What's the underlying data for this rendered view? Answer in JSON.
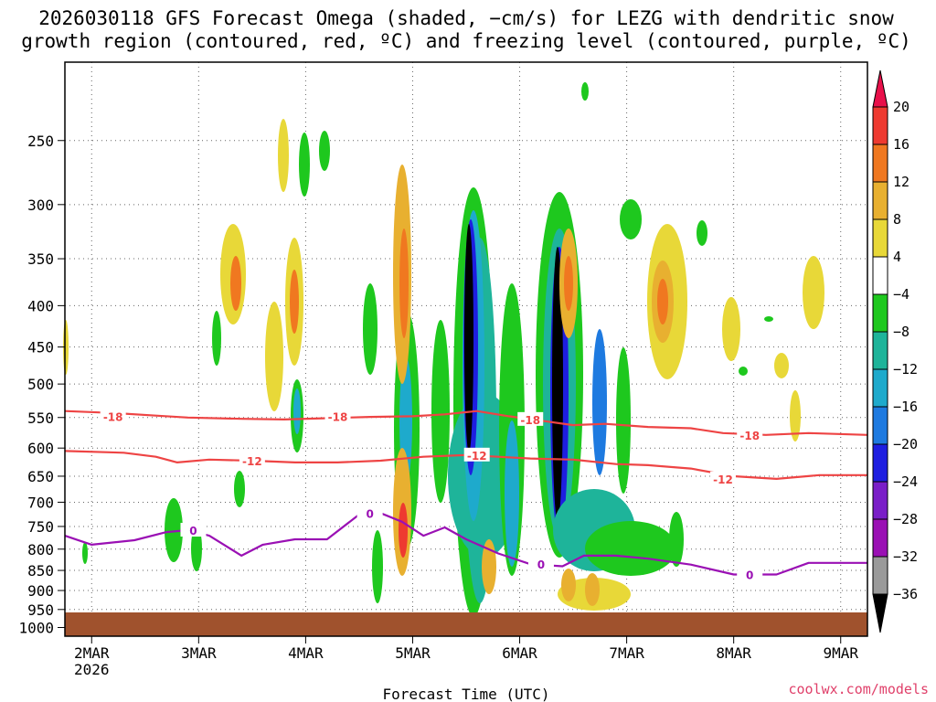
{
  "chart_data": {
    "type": "heatmap",
    "title_lines": [
      "2026030118 GFS Forecast Omega (shaded, −cm/s) for LEZG with dendritic snow",
      "growth region (contoured, red, ºC) and freezing level (contoured, purple, ºC)"
    ],
    "xlabel": "Forecast Time (UTC)",
    "ylabel": "",
    "credit": "coolwx.com/models",
    "x_ticks": [
      {
        "day": 2,
        "label": "2MAR",
        "sub": "2026"
      },
      {
        "day": 3,
        "label": "3MAR",
        "sub": ""
      },
      {
        "day": 4,
        "label": "4MAR",
        "sub": ""
      },
      {
        "day": 5,
        "label": "5MAR",
        "sub": ""
      },
      {
        "day": 6,
        "label": "6MAR",
        "sub": ""
      },
      {
        "day": 7,
        "label": "7MAR",
        "sub": ""
      },
      {
        "day": 8,
        "label": "8MAR",
        "sub": ""
      },
      {
        "day": 9,
        "label": "9MAR",
        "sub": ""
      }
    ],
    "x_range_days": [
      1.75,
      9.25
    ],
    "y_ticks": [
      250,
      300,
      350,
      400,
      450,
      500,
      550,
      600,
      650,
      700,
      750,
      800,
      850,
      900,
      950,
      1000
    ],
    "y_range_hpa": [
      200,
      1025
    ],
    "colorbar": {
      "labels": [
        "20",
        "16",
        "12",
        "8",
        "4",
        "−4",
        "−8",
        "−12",
        "−16",
        "−20",
        "−24",
        "−28",
        "−32",
        "−36"
      ],
      "colors": [
        "#e8104a",
        "#ee3a30",
        "#f07820",
        "#e8b030",
        "#e8d838",
        "#ffffff",
        "#1ec81e",
        "#1eb49a",
        "#1eaacc",
        "#1e7ae0",
        "#1e1ee0",
        "#7a1ec8",
        "#9a10b4",
        "#9a9a9a",
        "#000000"
      ]
    },
    "contours": [
      {
        "name": "-18 °C",
        "label": "-18",
        "color": "#ee4444",
        "x": [
          1.75,
          2.2,
          2.6,
          2.9,
          3.4,
          3.8,
          4.2,
          4.6,
          5.0,
          5.3,
          5.6,
          5.9,
          6.2,
          6.5,
          6.8,
          7.2,
          7.6,
          7.9,
          8.3,
          8.7,
          9.25
        ],
        "y": [
          540,
          543,
          547,
          550,
          552,
          553,
          551,
          549,
          548,
          545,
          540,
          548,
          555,
          562,
          560,
          565,
          567,
          575,
          578,
          575,
          578
        ],
        "label_at": [
          [
            2.2,
            548
          ],
          [
            4.3,
            548
          ],
          [
            6.1,
            553
          ],
          [
            8.15,
            578
          ]
        ]
      },
      {
        "name": "-12 °C",
        "label": "-12",
        "color": "#ee4444",
        "x": [
          1.75,
          2.3,
          2.6,
          2.8,
          3.1,
          3.5,
          3.9,
          4.3,
          4.7,
          5.1,
          5.5,
          5.8,
          6.1,
          6.5,
          6.9,
          7.2,
          7.6,
          8.0,
          8.4,
          8.8,
          9.25
        ],
        "y": [
          605,
          608,
          615,
          625,
          620,
          622,
          625,
          625,
          622,
          615,
          612,
          615,
          618,
          620,
          628,
          630,
          636,
          650,
          655,
          648,
          648
        ],
        "label_at": [
          [
            3.5,
            622
          ],
          [
            5.6,
            612
          ],
          [
            7.9,
            655
          ]
        ]
      },
      {
        "name": "0 °C freezing level",
        "label": "0",
        "color": "#9a10b4",
        "x": [
          1.75,
          2.0,
          2.4,
          2.7,
          2.9,
          3.1,
          3.4,
          3.6,
          3.9,
          4.2,
          4.5,
          4.7,
          4.9,
          5.1,
          5.3,
          5.5,
          5.8,
          6.1,
          6.4,
          6.6,
          6.9,
          7.2,
          7.6,
          8.0,
          8.4,
          8.7,
          9.25
        ],
        "y": [
          770,
          790,
          780,
          762,
          758,
          770,
          815,
          790,
          778,
          778,
          725,
          722,
          740,
          770,
          752,
          778,
          810,
          835,
          840,
          815,
          815,
          822,
          836,
          860,
          860,
          832,
          832
        ],
        "label_at": [
          [
            2.95,
            758
          ],
          [
            4.6,
            722
          ],
          [
            6.2,
            835
          ],
          [
            8.15,
            860
          ]
        ]
      }
    ]
  }
}
